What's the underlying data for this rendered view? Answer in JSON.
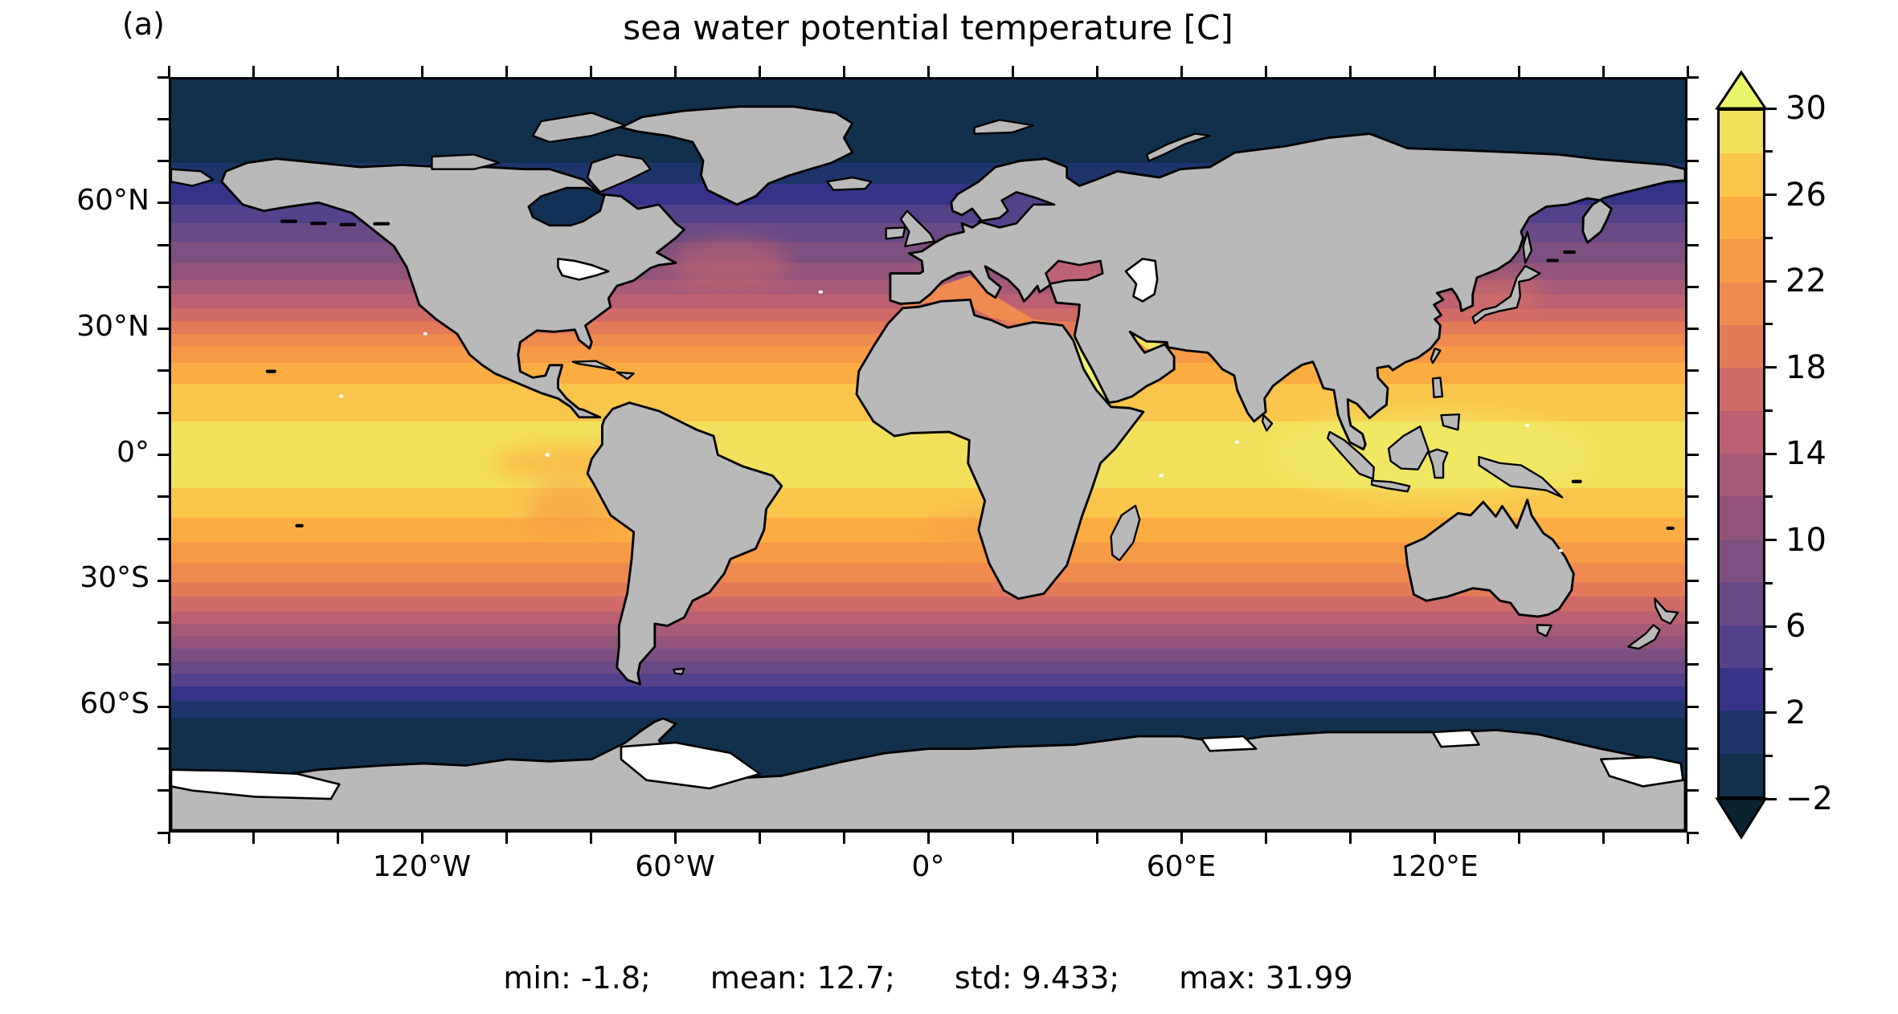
{
  "panel_label": "(a)",
  "title": "sea water potential temperature [C]",
  "stats": {
    "min": "min: -1.8;",
    "mean": "mean: 12.7;",
    "std": "std: 9.433;",
    "max": "max: 31.99"
  },
  "axes": {
    "x_major": [
      {
        "lon": -120,
        "label": "120°W"
      },
      {
        "lon": -60,
        "label": "60°W"
      },
      {
        "lon": 0,
        "label": "0°"
      },
      {
        "lon": 60,
        "label": "60°E"
      },
      {
        "lon": 120,
        "label": "120°E"
      }
    ],
    "x_tick_step_deg": 20,
    "x_range": [
      -180,
      180
    ],
    "y_major": [
      {
        "lat": 60,
        "label": "60°N"
      },
      {
        "lat": 30,
        "label": "30°N"
      },
      {
        "lat": 0,
        "label": "0°"
      },
      {
        "lat": -30,
        "label": "30°S"
      },
      {
        "lat": -60,
        "label": "60°S"
      }
    ],
    "y_tick_step_deg": 10,
    "y_range": [
      -90,
      90
    ]
  },
  "colorbar": {
    "ticks_major": [
      {
        "value": 30,
        "label": "30"
      },
      {
        "value": 26,
        "label": "26"
      },
      {
        "value": 22,
        "label": "22"
      },
      {
        "value": 18,
        "label": "18"
      },
      {
        "value": 14,
        "label": "14"
      },
      {
        "value": 10,
        "label": "10"
      },
      {
        "value": 6,
        "label": "6"
      },
      {
        "value": 2,
        "label": "2"
      },
      {
        "value": -2,
        "label": "−2"
      }
    ],
    "ticks_minor": [
      28,
      24,
      20,
      16,
      12,
      8,
      4,
      0
    ],
    "vmin": -2,
    "vmax": 30,
    "bin_colors": [
      "#10304e",
      "#1e356b",
      "#363389",
      "#53428a",
      "#6a4a86",
      "#7f4f81",
      "#93547c",
      "#a75a78",
      "#bb6073",
      "#d06a66",
      "#e37a59",
      "#ef8a4f",
      "#f79a46",
      "#fbad41",
      "#f9c54b",
      "#f2e05c"
    ],
    "extend_over_color": "#e9f669",
    "extend_under_color": "#0b2231"
  },
  "map": {
    "land_color": "#b9b9b9",
    "coastline_color": "#000000",
    "seas": {
      "mediterranean": "#f08a4f",
      "black_sea": "#bd6274",
      "baltic_sea": "#53428a",
      "red_sea": "#eef06a",
      "persian_gulf": "#f2e45e",
      "hudson_bay": "#123156",
      "caspian_sea": "#ffffff"
    },
    "zonal_bands": [
      [
        20,
        "#10304e"
      ],
      [
        25,
        "#1e356b"
      ],
      [
        30,
        "#363389"
      ],
      [
        34.5,
        "#53428a"
      ],
      [
        39,
        "#6a4a86"
      ],
      [
        44,
        "#7f4f81"
      ],
      [
        48,
        "#93547c"
      ],
      [
        51.5,
        "#a75a78"
      ],
      [
        55,
        "#bb6073"
      ],
      [
        58,
        "#d06a66"
      ],
      [
        61,
        "#e37a59"
      ],
      [
        64,
        "#ef8a4f"
      ],
      [
        68,
        "#f79a46"
      ],
      [
        73,
        "#fbad41"
      ],
      [
        82,
        "#f9c54b"
      ],
      [
        98,
        "#f2e05c"
      ],
      [
        105,
        "#f9c54b"
      ],
      [
        111,
        "#fbad41"
      ],
      [
        116,
        "#f79a46"
      ],
      [
        120.5,
        "#ef8a4f"
      ],
      [
        124,
        "#e37a59"
      ],
      [
        127.5,
        "#d06a66"
      ],
      [
        130.5,
        "#bb6073"
      ],
      [
        133.5,
        "#a75a78"
      ],
      [
        136.5,
        "#93547c"
      ],
      [
        139.5,
        "#7f4f81"
      ],
      [
        142.5,
        "#6a4a86"
      ],
      [
        145.5,
        "#53428a"
      ],
      [
        149,
        "#363389"
      ],
      [
        153,
        "#1e356b"
      ],
      [
        180,
        "#10304e"
      ]
    ]
  },
  "chart_data": {
    "type": "heatmap",
    "title": "sea water potential temperature [C]",
    "variable": "sea water potential temperature",
    "units": "C",
    "projection": "equirectangular (PlateCarree), global",
    "xlabel_ticks": [
      "120°W",
      "60°W",
      "0°",
      "60°E",
      "120°E"
    ],
    "ylabel_ticks": [
      "60°N",
      "30°N",
      "0°",
      "30°S",
      "60°S"
    ],
    "colorbar_levels": [
      -2,
      0,
      2,
      4,
      6,
      8,
      10,
      12,
      14,
      16,
      18,
      20,
      22,
      24,
      26,
      28,
      30
    ],
    "colorbar_tick_labels": [
      30,
      26,
      22,
      18,
      14,
      10,
      6,
      2,
      -2
    ],
    "statistics": {
      "min": -1.8,
      "mean": 12.7,
      "std": 9.433,
      "max": 31.99
    },
    "zonal_mean_profile": {
      "lat": [
        90,
        80,
        70,
        65,
        60,
        55,
        50,
        45,
        40,
        35,
        30,
        25,
        20,
        15,
        10,
        5,
        0,
        -5,
        -10,
        -15,
        -20,
        -25,
        -30,
        -35,
        -40,
        -45,
        -50,
        -55,
        -60,
        -65,
        -70,
        -80,
        -90
      ],
      "temp": [
        -1.8,
        -1.5,
        0,
        2,
        4,
        6.5,
        8.5,
        10.5,
        13,
        16,
        19.5,
        22.5,
        25,
        27,
        28,
        28.5,
        28.5,
        28.2,
        27.5,
        26,
        24.5,
        22.5,
        20.5,
        17.5,
        14.5,
        11,
        8,
        5,
        1.5,
        0,
        -1,
        -1.8,
        -1.8
      ],
      "note": "values estimated from filled-contour colors; 2 C discrete bins"
    },
    "legend_position": "right colorbar with extend arrows both ends"
  }
}
